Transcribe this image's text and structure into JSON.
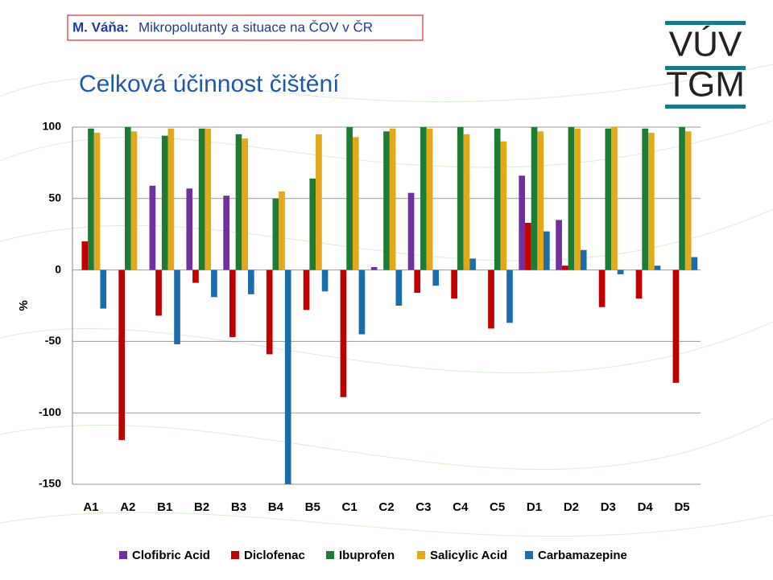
{
  "slide": {
    "author": "M. Váňa:",
    "subtitle": "Mikropolutanty a situace na ČOV v ČR",
    "logo": [
      "VÚV",
      "TGM"
    ]
  },
  "chart_data": {
    "type": "bar",
    "title": "Celková účinnost čištění",
    "ylabel": "%",
    "categories": [
      "A1",
      "A2",
      "B1",
      "B2",
      "B3",
      "B4",
      "B5",
      "C1",
      "C2",
      "C3",
      "C4",
      "C5",
      "D1",
      "D2",
      "D3",
      "D4",
      "D5"
    ],
    "series": [
      {
        "name": "Clofibric Acid",
        "color": "#7030a0",
        "values": [
          null,
          null,
          59,
          57,
          52,
          null,
          null,
          null,
          2,
          54,
          null,
          null,
          66,
          35,
          null,
          null,
          null
        ]
      },
      {
        "name": "Diclofenac",
        "color": "#c00000",
        "values": [
          20,
          -119,
          -32,
          -9,
          -47,
          -59,
          -28,
          -89,
          null,
          -16,
          -20,
          -41,
          33,
          3,
          -26,
          -20,
          -79
        ]
      },
      {
        "name": "Ibuprofen",
        "color": "#1e7b34",
        "values": [
          99,
          100,
          94,
          99,
          95,
          50,
          64,
          100,
          97,
          100,
          100,
          99,
          100,
          100,
          99,
          99,
          100
        ]
      },
      {
        "name": "Salicylic Acid",
        "color": "#e3a81c",
        "values": [
          96,
          97,
          99,
          99,
          92,
          55,
          95,
          93,
          99,
          99,
          95,
          90,
          97,
          99,
          100,
          96,
          97
        ]
      },
      {
        "name": "Carbamazepine",
        "color": "#1b6ca8",
        "values": [
          -27,
          null,
          -52,
          -19,
          -17,
          -150,
          -15,
          -45,
          -25,
          -11,
          8,
          -37,
          27,
          14,
          -3,
          3,
          9
        ]
      }
    ],
    "ylim": [
      -150,
      100
    ],
    "yticks": [
      100,
      50,
      0,
      -50,
      -100,
      -150
    ],
    "grid": true,
    "legend": "bottom"
  }
}
